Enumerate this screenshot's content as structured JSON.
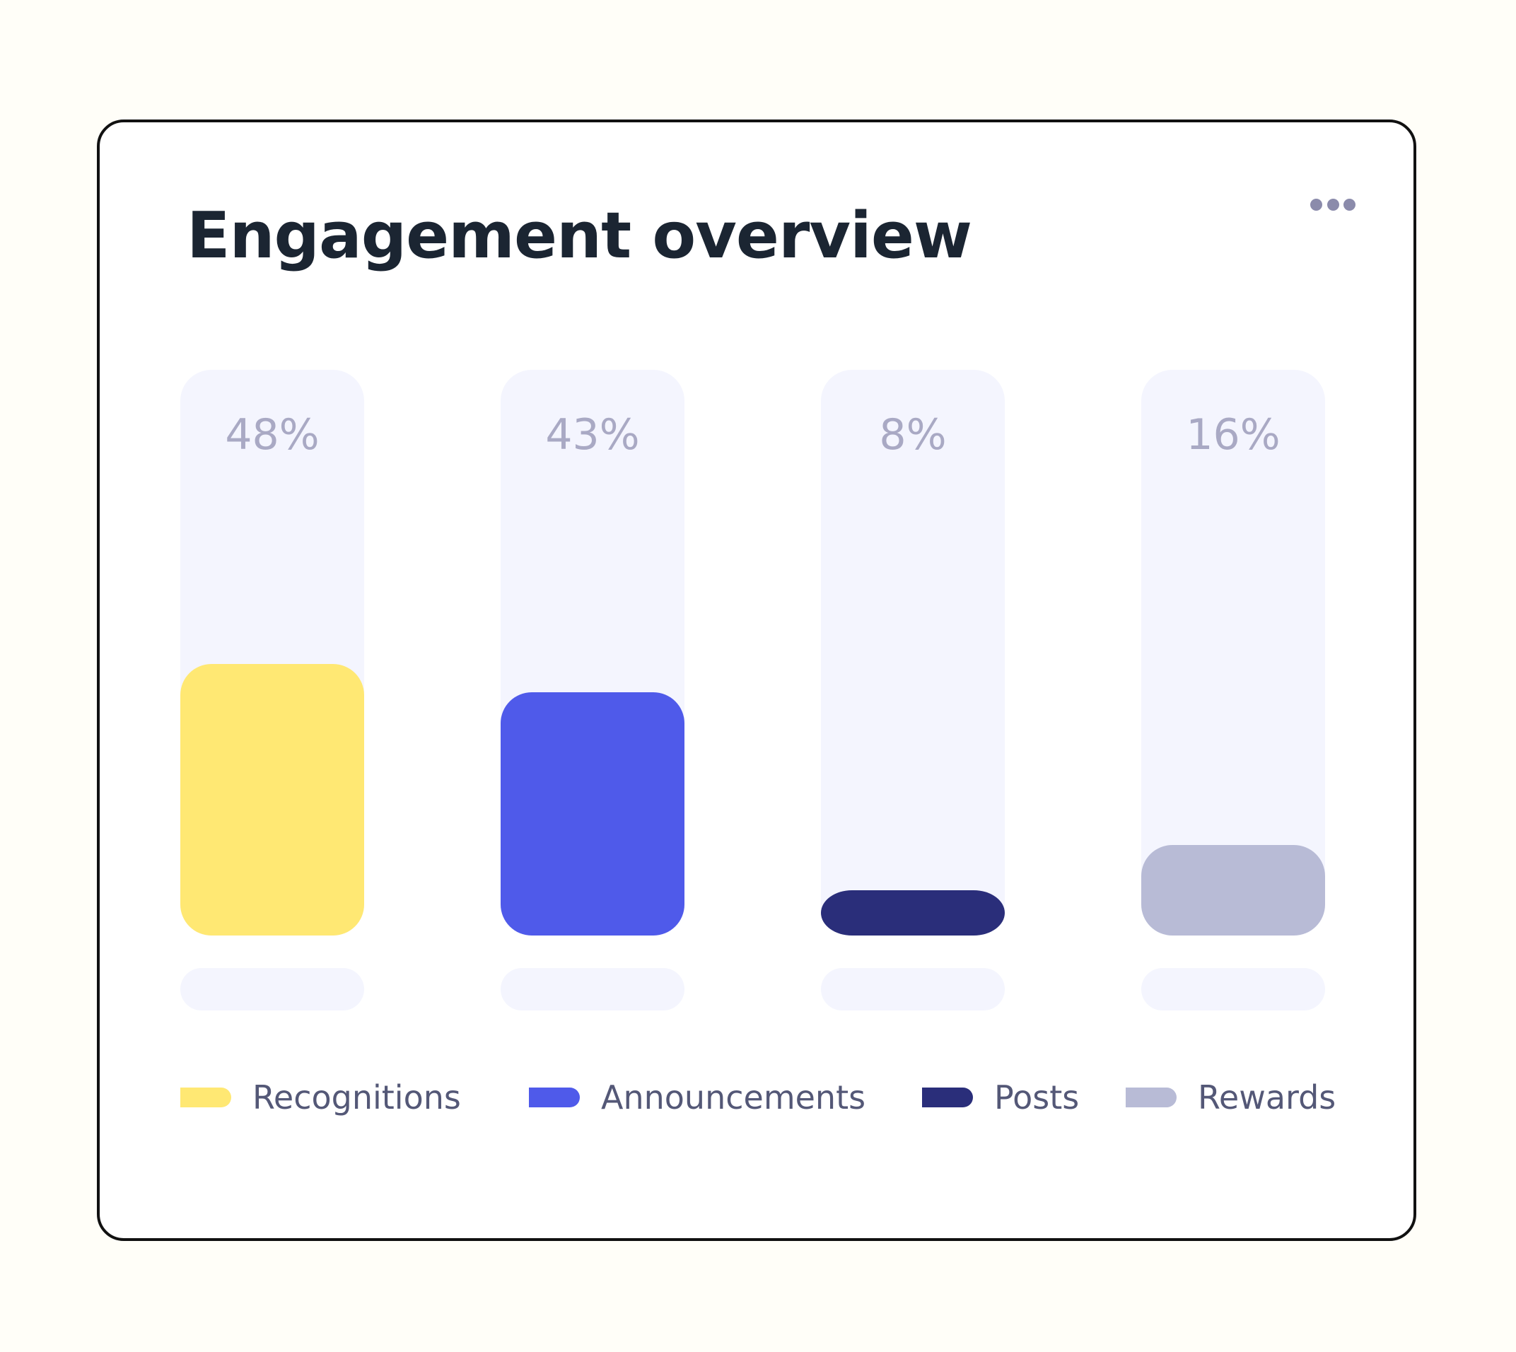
{
  "card": {
    "title": "Engagement overview",
    "menu_icon": "more-horizontal-icon"
  },
  "colors": {
    "track": "#f4f5fe",
    "recognitions": "#ffe873",
    "announcements": "#4f5aea",
    "posts": "#2a2e7a",
    "rewards": "#b8bbd6",
    "value_label": "#a9a9c4",
    "legend_text": "#545877"
  },
  "chart_data": {
    "type": "bar",
    "categories": [
      "Recognitions",
      "Announcements",
      "Posts",
      "Rewards"
    ],
    "values": [
      48,
      43,
      8,
      16
    ],
    "value_labels": [
      "48%",
      "43%",
      "8%",
      "16%"
    ],
    "unit": "%",
    "ylim": [
      0,
      100
    ],
    "grid": false,
    "legend": {
      "placement": "bottom",
      "entries": [
        "Recognitions",
        "Announcements",
        "Posts",
        "Rewards"
      ]
    }
  }
}
